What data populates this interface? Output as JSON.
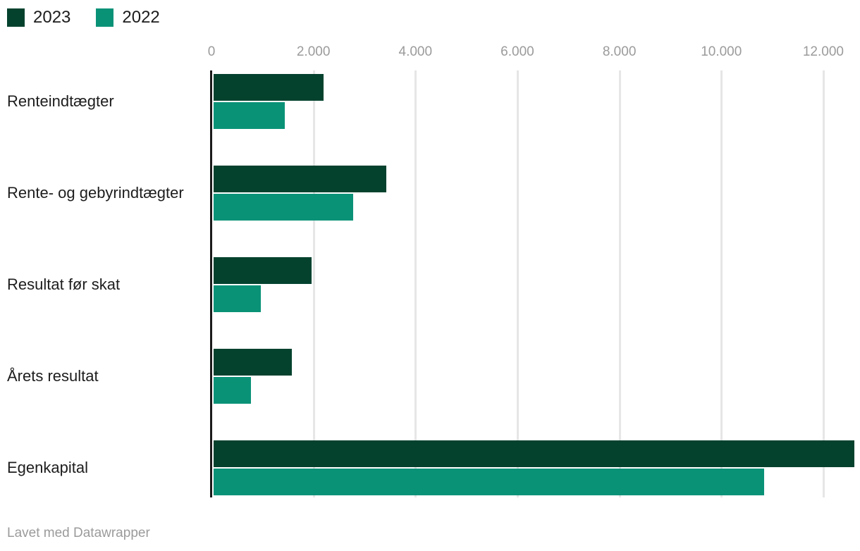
{
  "legend": {
    "items": [
      {
        "label": "2023",
        "color": "#04422e"
      },
      {
        "label": "2022",
        "color": "#0a9277"
      }
    ]
  },
  "footer": {
    "credit": "Lavet med Datawrapper"
  },
  "chart_data": {
    "type": "bar",
    "orientation": "horizontal",
    "title": "",
    "xlabel": "",
    "ylabel": "",
    "grid": true,
    "legend_position": "top-left",
    "categories": [
      "Renteindtægter",
      "Rente- og gebyrindtægter",
      "Resultat før skat",
      "Årets resultat",
      "Egenkapital"
    ],
    "series": [
      {
        "name": "2023",
        "color": "#04422e",
        "values": [
          2150,
          3390,
          1925,
          1535,
          12570
        ]
      },
      {
        "name": "2022",
        "color": "#0a9277",
        "values": [
          1400,
          2730,
          930,
          735,
          10800
        ]
      }
    ],
    "x_axis": {
      "ticks": [
        0,
        2000,
        4000,
        6000,
        8000,
        10000,
        12000
      ],
      "tick_labels": [
        "0",
        "2.000",
        "4.000",
        "6.000",
        "8.000",
        "10.000",
        "12.000"
      ],
      "axis_max": 12720
    }
  }
}
